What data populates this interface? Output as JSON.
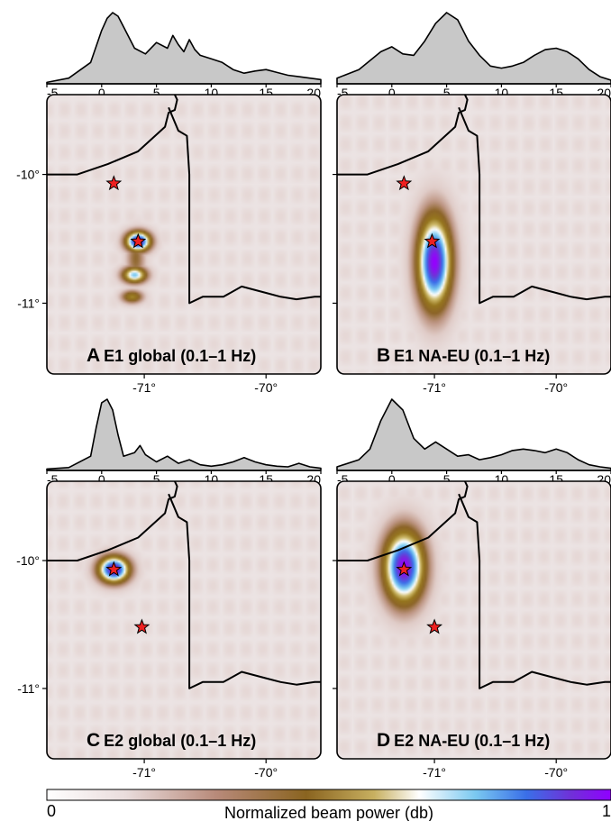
{
  "chart_data": {
    "type": "heatmap",
    "panels": [
      {
        "letter": "A",
        "title": "E1 global (0.1–1 Hz)",
        "time_axis": {
          "range": [
            -5,
            20
          ],
          "ticks": [
            "-5",
            "0",
            "5",
            "10",
            "15",
            "20"
          ]
        },
        "time_function": {
          "x": [
            -5,
            -3,
            -1,
            0,
            0.5,
            1,
            1.5,
            2,
            3,
            4,
            5,
            6,
            6.5,
            7,
            7.5,
            8,
            8.5,
            9,
            10,
            11,
            12,
            13,
            14,
            15,
            16,
            17,
            18,
            19,
            20
          ],
          "y": [
            0.02,
            0.08,
            0.3,
            0.75,
            0.92,
            1.0,
            0.95,
            0.8,
            0.5,
            0.42,
            0.58,
            0.5,
            0.68,
            0.55,
            0.45,
            0.62,
            0.48,
            0.4,
            0.35,
            0.3,
            0.2,
            0.15,
            0.18,
            0.2,
            0.16,
            0.12,
            0.1,
            0.08,
            0.06
          ]
        },
        "beam_peaks": [
          {
            "lon": -71.05,
            "lat": -10.52,
            "sx": 0.08,
            "sy": 0.06,
            "amp": 1.0
          },
          {
            "lon": -71.08,
            "lat": -10.78,
            "sx": 0.08,
            "sy": 0.05,
            "amp": 0.75
          },
          {
            "lon": -71.1,
            "lat": -10.95,
            "sx": 0.07,
            "sy": 0.04,
            "amp": 0.5
          },
          {
            "lon": -71.07,
            "lat": -10.65,
            "sx": 0.06,
            "sy": 0.15,
            "amp": 0.35
          }
        ],
        "stars": [
          {
            "lon": -71.25,
            "lat": -10.07
          },
          {
            "lon": -71.05,
            "lat": -10.52
          }
        ]
      },
      {
        "letter": "B",
        "title": "E1 NA-EU (0.1–1 Hz)",
        "time_axis": {
          "range": [
            -5,
            20
          ],
          "ticks": [
            "-5",
            "0",
            "5",
            "10",
            "15",
            "20"
          ]
        },
        "time_function": {
          "x": [
            -5,
            -3,
            -1,
            0,
            1,
            2,
            3,
            4,
            5,
            6,
            7,
            8,
            9,
            10,
            11,
            12,
            13,
            14,
            15,
            16,
            17,
            18,
            19,
            20
          ],
          "y": [
            0.08,
            0.2,
            0.45,
            0.52,
            0.42,
            0.4,
            0.6,
            0.85,
            1.0,
            0.9,
            0.6,
            0.4,
            0.25,
            0.22,
            0.25,
            0.3,
            0.4,
            0.48,
            0.5,
            0.45,
            0.35,
            0.2,
            0.1,
            0.05
          ]
        },
        "beam_peaks": [
          {
            "lon": -71.0,
            "lat": -10.68,
            "sx": 0.11,
            "sy": 0.28,
            "amp": 1.0
          }
        ],
        "stars": [
          {
            "lon": -71.25,
            "lat": -10.07
          },
          {
            "lon": -71.02,
            "lat": -10.52
          }
        ]
      },
      {
        "letter": "C",
        "title": "E2 global (0.1–1 Hz)",
        "time_axis": {
          "range": [
            -5,
            20
          ],
          "ticks": [
            "-5",
            "0",
            "5",
            "10",
            "15",
            "20"
          ]
        },
        "time_function": {
          "x": [
            -5,
            -3,
            -1,
            -0.5,
            0,
            0.5,
            1,
            1.5,
            2,
            3,
            3.5,
            4,
            5,
            6,
            7,
            8,
            9,
            10,
            11,
            12,
            13,
            14,
            15,
            16,
            17,
            18,
            19,
            20
          ],
          "y": [
            0.02,
            0.04,
            0.2,
            0.6,
            0.95,
            1.0,
            0.85,
            0.5,
            0.2,
            0.25,
            0.35,
            0.22,
            0.12,
            0.2,
            0.1,
            0.15,
            0.08,
            0.06,
            0.08,
            0.12,
            0.18,
            0.12,
            0.08,
            0.06,
            0.05,
            0.1,
            0.05,
            0.03
          ]
        },
        "beam_peaks": [
          {
            "lon": -71.25,
            "lat": -10.07,
            "sx": 0.1,
            "sy": 0.08,
            "amp": 1.0
          }
        ],
        "stars": [
          {
            "lon": -71.25,
            "lat": -10.07
          },
          {
            "lon": -71.02,
            "lat": -10.52
          }
        ]
      },
      {
        "letter": "D",
        "title": "E2 NA-EU (0.1–1 Hz)",
        "time_axis": {
          "range": [
            -5,
            20
          ],
          "ticks": [
            "-5",
            "0",
            "5",
            "10",
            "15",
            "20"
          ]
        },
        "time_function": {
          "x": [
            -5,
            -3,
            -2,
            -1,
            0,
            1,
            2,
            3,
            4,
            5,
            6,
            7,
            8,
            9,
            10,
            11,
            12,
            13,
            14,
            15,
            16,
            17,
            18,
            19,
            20
          ],
          "y": [
            0.05,
            0.15,
            0.3,
            0.7,
            1.0,
            0.85,
            0.45,
            0.3,
            0.4,
            0.3,
            0.2,
            0.22,
            0.15,
            0.18,
            0.22,
            0.28,
            0.3,
            0.28,
            0.25,
            0.3,
            0.25,
            0.15,
            0.08,
            0.05,
            0.03
          ]
        },
        "beam_peaks": [
          {
            "lon": -71.25,
            "lat": -10.05,
            "sx": 0.13,
            "sy": 0.22,
            "amp": 1.0
          }
        ],
        "stars": [
          {
            "lon": -71.25,
            "lat": -10.07
          },
          {
            "lon": -71.0,
            "lat": -10.52
          }
        ]
      }
    ],
    "map": {
      "lon_range": [
        -71.8,
        -69.55
      ],
      "lat_range": [
        -11.55,
        -9.38
      ],
      "lon_ticks": [
        "-71°",
        "-70°"
      ],
      "lat_ticks": [
        "-10°",
        "-11°"
      ],
      "borders": [
        [
          [
            -71.8,
            -10.0
          ],
          [
            -71.55,
            -10.0
          ],
          [
            -71.3,
            -9.92
          ],
          [
            -71.05,
            -9.82
          ],
          [
            -70.83,
            -9.63
          ],
          [
            -70.8,
            -9.52
          ],
          [
            -70.75,
            -9.5
          ],
          [
            -70.73,
            -9.42
          ],
          [
            -70.75,
            -9.38
          ]
        ],
        [
          [
            -70.8,
            -9.48
          ],
          [
            -70.72,
            -9.66
          ],
          [
            -70.65,
            -9.7
          ],
          [
            -70.63,
            -10.0
          ],
          [
            -70.63,
            -11.0
          ],
          [
            -70.52,
            -10.95
          ],
          [
            -70.35,
            -10.95
          ],
          [
            -70.2,
            -10.87
          ],
          [
            -70.0,
            -10.92
          ],
          [
            -69.88,
            -10.95
          ],
          [
            -69.75,
            -10.97
          ],
          [
            -69.6,
            -10.95
          ],
          [
            -69.55,
            -10.95
          ]
        ]
      ]
    },
    "colorbar": {
      "label": "Normalized beam power (db)",
      "min_label": "0",
      "max_label": "1"
    },
    "colors": {
      "star_fill": "#ee2020",
      "background": "#ece4e4",
      "histogram_fill": "#c8c8c8"
    }
  }
}
